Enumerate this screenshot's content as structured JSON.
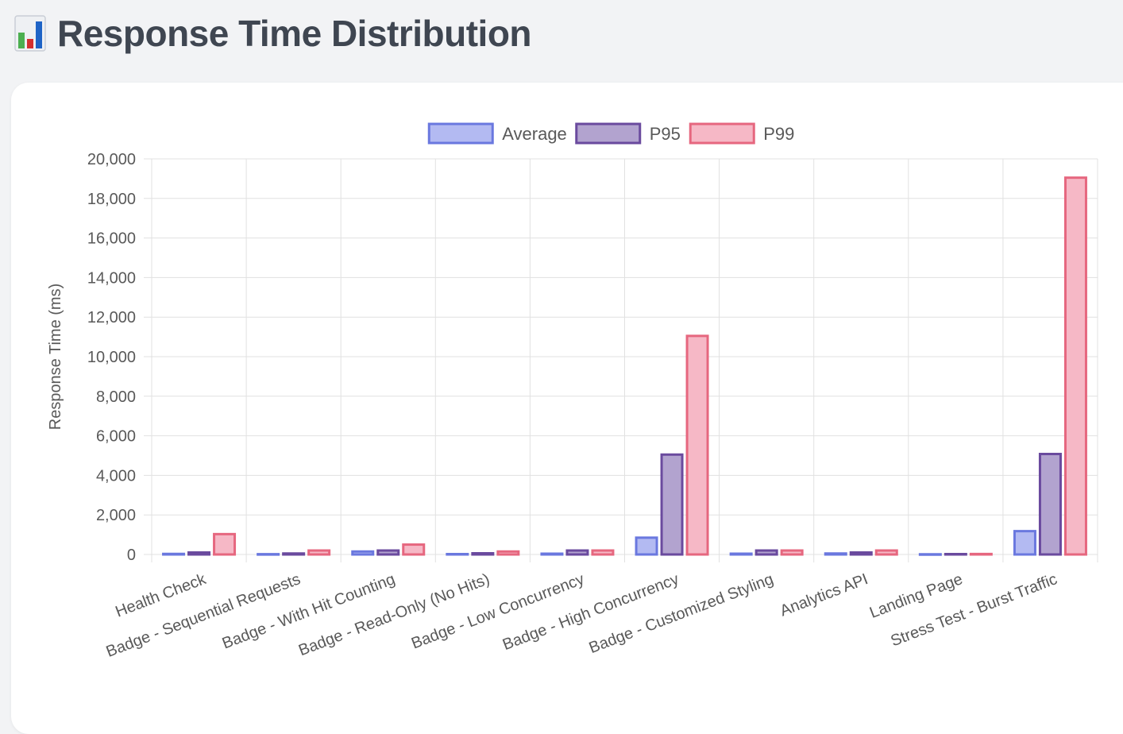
{
  "header": {
    "title": "Response Time Distribution",
    "icon": "bar-chart-icon"
  },
  "colors": {
    "average_fill": "#b3baf2",
    "average_stroke": "#6a78df",
    "p95_fill": "#b2a3cf",
    "p95_stroke": "#6a4a9e",
    "p99_fill": "#f6b8c6",
    "p99_stroke": "#e6677f",
    "grid": "#e1e1e1",
    "text": "#595959"
  },
  "chart_data": {
    "type": "bar",
    "title": "",
    "xlabel": "",
    "ylabel": "Response Time (ms)",
    "ylim": [
      0,
      20000
    ],
    "yticks": [
      0,
      2000,
      4000,
      6000,
      8000,
      10000,
      12000,
      14000,
      16000,
      18000,
      20000
    ],
    "ytick_labels": [
      "0",
      "2,000",
      "4,000",
      "6,000",
      "8,000",
      "10,000",
      "12,000",
      "14,000",
      "16,000",
      "18,000",
      "20,000"
    ],
    "grid": true,
    "legend_position": "top-center",
    "categories": [
      "Health Check",
      "Badge - Sequential Requests",
      "Badge - With Hit Counting",
      "Badge - Read-Only (No Hits)",
      "Badge - Low Concurrency",
      "Badge - High Concurrency",
      "Badge - Customized Styling",
      "Analytics API",
      "Landing Page",
      "Stress Test - Burst Traffic"
    ],
    "series": [
      {
        "name": "Average",
        "values": [
          30,
          15,
          150,
          20,
          40,
          850,
          40,
          50,
          10,
          1180
        ]
      },
      {
        "name": "P95",
        "values": [
          100,
          50,
          200,
          60,
          200,
          5050,
          200,
          100,
          20,
          5080
        ]
      },
      {
        "name": "P99",
        "values": [
          1030,
          200,
          500,
          150,
          200,
          11050,
          200,
          200,
          25,
          19050
        ]
      }
    ]
  }
}
